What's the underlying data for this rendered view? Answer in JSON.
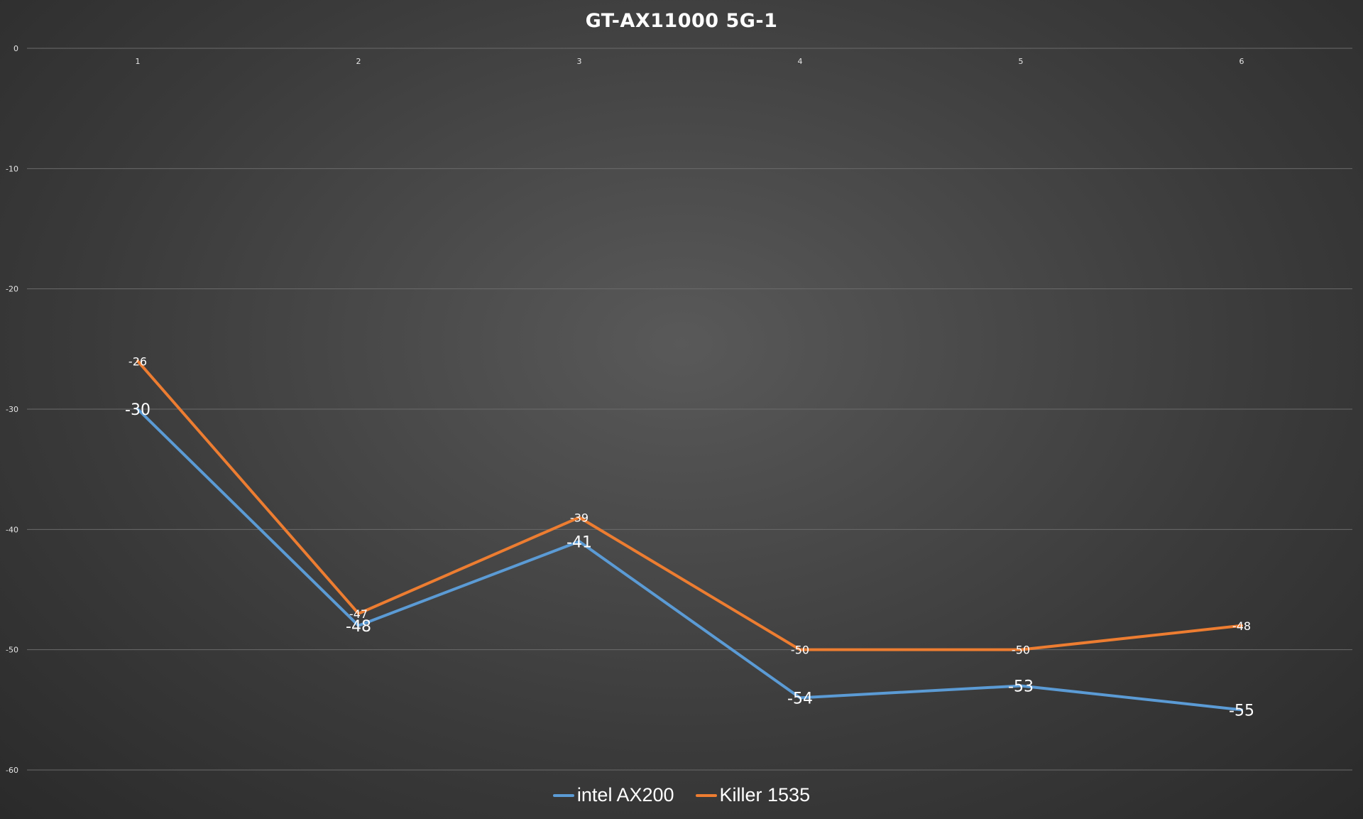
{
  "chart_data": {
    "type": "line",
    "title": "GT-AX11000 5G-1",
    "xlabel": "",
    "ylabel": "",
    "categories": [
      "1",
      "2",
      "3",
      "4",
      "5",
      "6"
    ],
    "ylim": [
      -60,
      0
    ],
    "yticks": [
      0,
      -10,
      -20,
      -30,
      -40,
      -50,
      -60
    ],
    "grid": true,
    "legend_position": "bottom",
    "series": [
      {
        "name": "intel AX200",
        "color": "#5b9bd5",
        "values": [
          -30,
          -48,
          -41,
          -54,
          -53,
          -55
        ]
      },
      {
        "name": "Killer 1535",
        "color": "#ed7d31",
        "values": [
          -26,
          -47,
          -39,
          -50,
          -50,
          -48
        ]
      }
    ]
  }
}
